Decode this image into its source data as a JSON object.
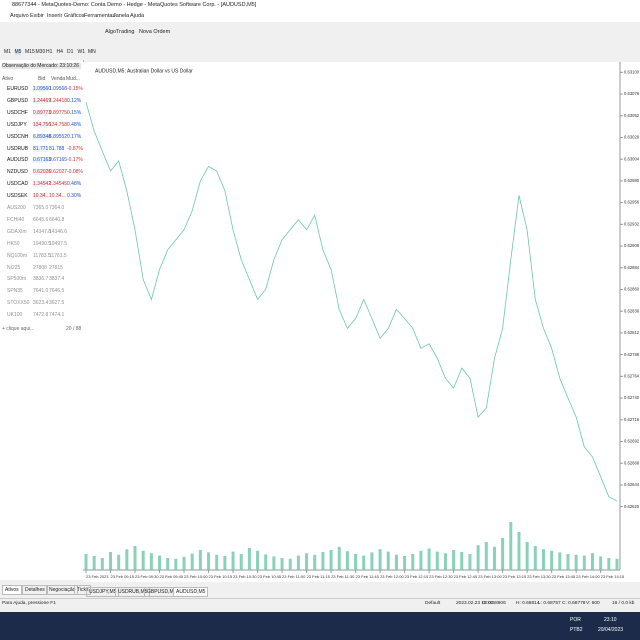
{
  "window": {
    "title": "88677344 - MetaQuotes-Demo: Conta Demo - Hedge - MetaQuotes Software Corp. - [AUDUSD,M5]",
    "menu": [
      "Arquivo",
      "Exibir",
      "Inserir",
      "Gráficos",
      "Ferramentas",
      "Janela",
      "Ajuda"
    ],
    "toolbar": [
      "AlgoTrading",
      "Nova Ordem"
    ],
    "timeframes": [
      "M1",
      "M5",
      "M15",
      "M30",
      "H1",
      "H4",
      "D1",
      "W1",
      "MN"
    ]
  },
  "market_watch": {
    "title": "Observação do Mercado: 23:10:26",
    "columns": [
      "Ativo",
      "Bid",
      "Venda",
      "Mud..."
    ],
    "rows": [
      {
        "symbol": "EURUSD",
        "bid": "1.09560",
        "ask": "1.09568",
        "change": "-0.15%",
        "color": "#2050d0"
      },
      {
        "symbol": "GBPUSD",
        "bid": "1.24469",
        "ask": "1.24418",
        "change": "0.12%",
        "color": "#d03030"
      },
      {
        "symbol": "USDCHF",
        "bid": "0.89773",
        "ask": "0.89775",
        "change": "0.15%",
        "color": "#d03030"
      },
      {
        "symbol": "USDJPY",
        "bid": "134.756",
        "ask": "134.758",
        "change": "0.48%",
        "color": "#d03030"
      },
      {
        "symbol": "USDCNH",
        "bid": "6.89348",
        "ask": "6.89552",
        "change": "0.17%",
        "color": "#2050d0"
      },
      {
        "symbol": "USDRUB",
        "bid": "81.771",
        "ask": "81.788",
        "change": "-0.87%",
        "color": "#2050d0"
      },
      {
        "symbol": "AUDUSD",
        "bid": "0.67163",
        "ask": "0.67165",
        "change": "-0.17%",
        "color": "#2050d0"
      },
      {
        "symbol": "NZDUSD",
        "bid": "0.62026",
        "ask": "0.62027",
        "change": "-0.08%",
        "color": "#d03030"
      },
      {
        "symbol": "USDCAD",
        "bid": "1.34542",
        "ask": "1.34545",
        "change": "0.48%",
        "color": "#d03030"
      },
      {
        "symbol": "USDSEK",
        "bid": "10.34...",
        "ask": "10.34...",
        "change": "0.30%",
        "color": "#d03030"
      },
      {
        "symbol": "AUS200",
        "bid": "7365.0",
        "ask": "7364.0",
        "color": "#909090"
      },
      {
        "symbol": "FCHI40",
        "bid": "6645.6",
        "ask": "6640.8",
        "color": "#909090"
      },
      {
        "symbol": "GDAXIm",
        "bid": "14347.8",
        "ask": "14346.6",
        "color": "#909090"
      },
      {
        "symbol": "HK50",
        "bid": "19490.5",
        "ask": "19497.5",
        "color": "#909090"
      },
      {
        "symbol": "NQ100m",
        "bid": "11783.5",
        "ask": "11761.5",
        "color": "#909090"
      },
      {
        "symbol": "NI225",
        "bid": "27808",
        "ask": "27815",
        "color": "#909090"
      },
      {
        "symbol": "SP500m",
        "bid": "3836.7",
        "ask": "3837.4",
        "color": "#909090"
      },
      {
        "symbol": "SPN35",
        "bid": "7641.0",
        "ask": "7646.5",
        "color": "#909090"
      },
      {
        "symbol": "STOXX50",
        "bid": "3623.4",
        "ask": "3627.5",
        "color": "#909090"
      },
      {
        "symbol": "UK100",
        "bid": "7472.8",
        "ask": "7474.1",
        "color": "#909090"
      }
    ],
    "add": "+ clique aqui...",
    "count": "20 / 88",
    "tabs": [
      "Ativos",
      "Detalhes",
      "Negociação",
      "Ticks"
    ]
  },
  "chart_data": {
    "type": "line",
    "title": "AUDUSD,M5: Australian Dollar vs US Dollar",
    "color": "#6cc7a6",
    "categories": [
      "23 Feb 2023",
      null,
      null,
      "23 Feb 09:15",
      null,
      null,
      "23 Feb 09:30",
      null,
      null,
      "23 Feb 09:45",
      null,
      null,
      "23 Feb 10:00",
      null,
      null,
      "23 Feb 10:15",
      null,
      null,
      "23 Feb 10:30",
      null,
      null,
      "23 Feb 10:45",
      null,
      null,
      "23 Feb 11:00",
      null,
      null,
      "23 Feb 11:15",
      null,
      null,
      "23 Feb 11:30",
      null,
      null,
      "23 Feb 11:45",
      null,
      null,
      "23 Feb 12:00",
      null,
      null,
      "23 Feb 12:15",
      null,
      null,
      "23 Feb 12:30",
      null,
      null,
      "23 Feb 12:45",
      null,
      null,
      "23 Feb 13:00",
      null,
      null,
      "23 Feb 13:15",
      null,
      null,
      "23 Feb 13:30",
      null,
      null,
      "23 Feb 13:45",
      null,
      null,
      "23 Feb 14:00",
      null,
      null,
      "23 Feb 14:15",
      null,
      null
    ],
    "values": [
      0.63067,
      0.63035,
      0.63013,
      0.62991,
      0.63002,
      0.62969,
      0.62926,
      0.62871,
      0.62849,
      0.62882,
      0.62904,
      0.62915,
      0.62926,
      0.62947,
      0.6298,
      0.62996,
      0.62991,
      0.62969,
      0.62926,
      0.62893,
      0.62871,
      0.62849,
      0.6286,
      0.62893,
      0.62915,
      0.62926,
      0.62937,
      0.62926,
      0.62942,
      0.62904,
      0.62882,
      0.62838,
      0.62817,
      0.62828,
      0.62849,
      0.62828,
      0.62806,
      0.62817,
      0.62838,
      0.62828,
      0.62817,
      0.62795,
      0.628,
      0.62784,
      0.62762,
      0.62751,
      0.62773,
      0.62762,
      0.62719,
      0.62729,
      0.62784,
      0.62817,
      0.62893,
      0.62964,
      0.62926,
      0.62849,
      0.62817,
      0.62795,
      0.62762,
      0.6274,
      0.62719,
      0.62686,
      0.62675,
      0.62653,
      0.62631,
      0.62626
    ],
    "volumes": [
      40,
      35,
      30,
      45,
      38,
      52,
      60,
      48,
      42,
      36,
      30,
      28,
      33,
      41,
      50,
      44,
      38,
      35,
      46,
      40,
      55,
      48,
      39,
      34,
      30,
      28,
      36,
      42,
      38,
      45,
      50,
      58,
      47,
      40,
      36,
      44,
      52,
      46,
      38,
      35,
      40,
      48,
      54,
      46,
      42,
      50,
      45,
      40,
      62,
      70,
      58,
      80,
      120,
      95,
      70,
      60,
      52,
      48,
      44,
      40,
      38,
      36,
      42,
      34,
      30,
      28
    ],
    "vlim": [
      0,
      300
    ],
    "volume_color": "#6cc7a6",
    "ylim": [
      0.6255,
      0.63107
    ],
    "yticks": [
      {
        "value": 0.631,
        "label": "0.63100"
      },
      {
        "value": 0.63076,
        "label": "0.63076"
      },
      {
        "value": 0.63052,
        "label": "0.63052"
      },
      {
        "value": 0.63028,
        "label": "0.63028"
      },
      {
        "value": 0.63004,
        "label": "0.63004"
      },
      {
        "value": 0.6298,
        "label": "0.62980"
      },
      {
        "value": 0.62956,
        "label": "0.62956"
      },
      {
        "value": 0.62932,
        "label": "0.62932"
      },
      {
        "value": 0.62908,
        "label": "0.62908"
      },
      {
        "value": 0.62884,
        "label": "0.62884"
      },
      {
        "value": 0.6286,
        "label": "0.62860"
      },
      {
        "value": 0.62836,
        "label": "0.62836"
      },
      {
        "value": 0.62812,
        "label": "0.62812"
      },
      {
        "value": 0.62788,
        "label": "0.62788"
      },
      {
        "value": 0.62764,
        "label": "0.62764"
      },
      {
        "value": 0.6274,
        "label": "0.62740"
      },
      {
        "value": 0.62716,
        "label": "0.62716"
      },
      {
        "value": 0.62692,
        "label": "0.62692"
      },
      {
        "value": 0.62668,
        "label": "0.62668"
      },
      {
        "value": 0.62644,
        "label": "0.62644"
      },
      {
        "value": 0.6262,
        "label": "0.62620"
      }
    ],
    "grid": false
  },
  "chart_tabs": [
    "USDJPY,M5",
    "USDRUB,M5",
    "GBPUSD,M5",
    "AUDUSD,M5"
  ],
  "status": {
    "help": "Para Ajuda, pressione F1",
    "profile": "Default",
    "time": "2023.02.23 10:00",
    "open": "O: 0.68806",
    "high": "H: 0.68814",
    "low": "L: 0.68757",
    "close": "C: 0.68778",
    "volume": "V: 600",
    "traffic": "16 / 0.0 kb"
  },
  "taskbar": {
    "lang": "POR",
    "layout": "PTB2",
    "clock": "23:10",
    "date": "20/04/2023"
  }
}
